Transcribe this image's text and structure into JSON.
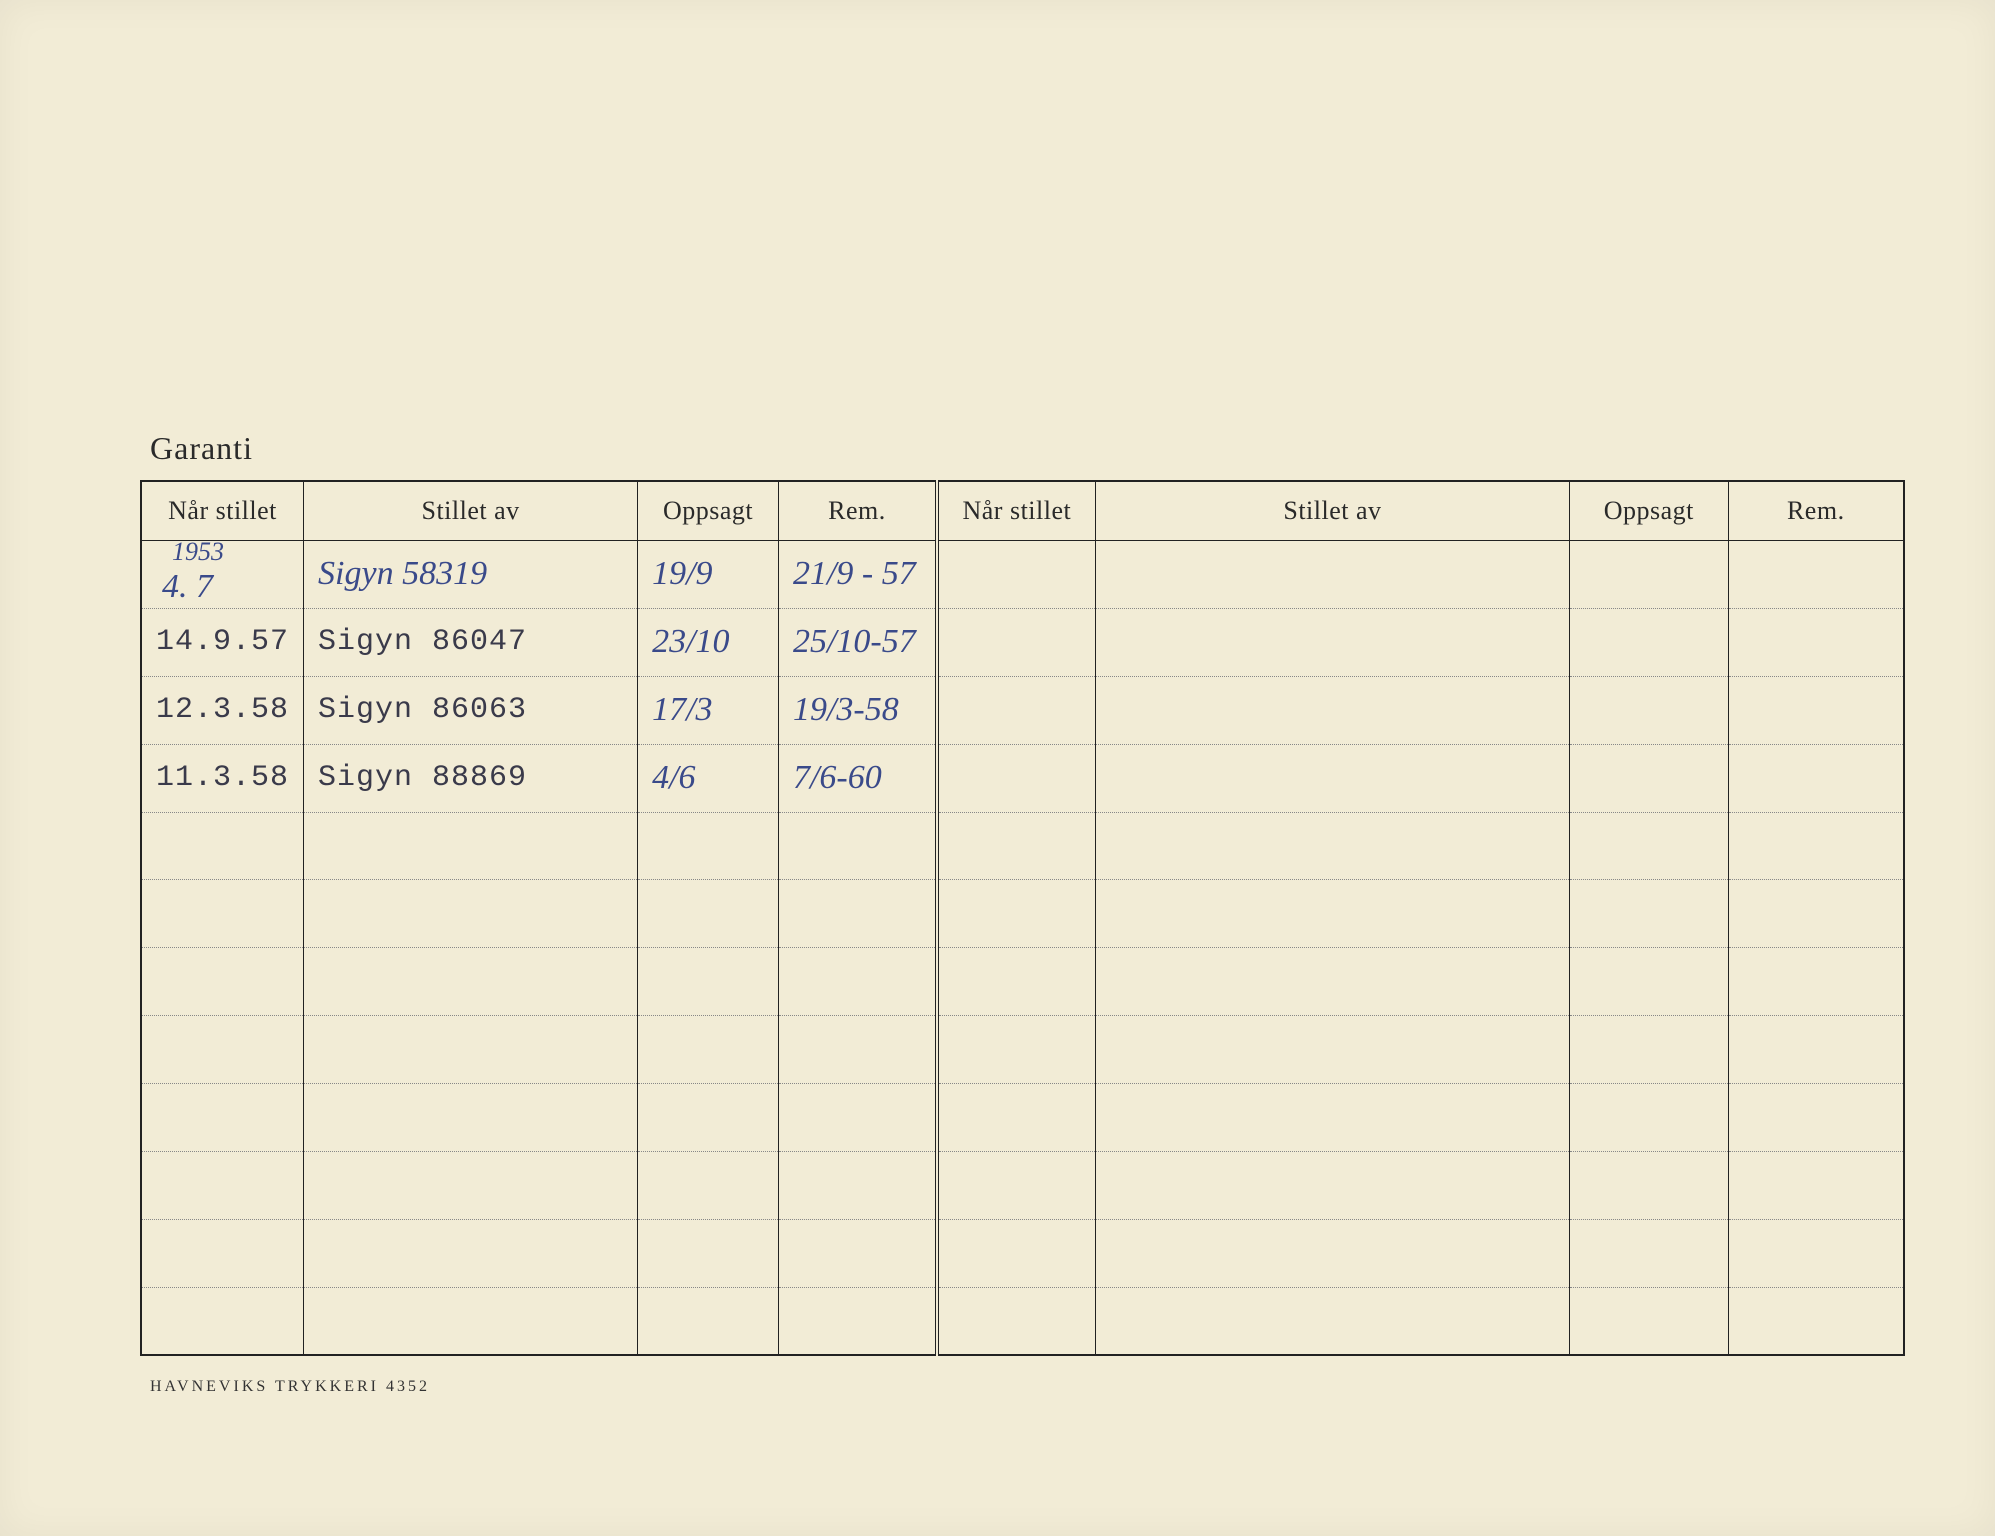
{
  "title": "Garanti",
  "footer": "HAVNEVIKS TRYKKERI 4352",
  "colors": {
    "page_bg": "#f2ecd6",
    "ink": "#2a2a2a",
    "handwritten": "#3a4a8a",
    "typed": "#3a3a4a",
    "border": "#222222",
    "dotted": "#888888"
  },
  "columns_left": {
    "nar_stillet": "Når stillet",
    "stillet_av": "Stillet av",
    "oppsagt": "Oppsagt",
    "rem": "Rem."
  },
  "columns_right": {
    "nar_stillet": "Når stillet",
    "stillet_av": "Stillet av",
    "oppsagt": "Oppsagt",
    "rem": "Rem."
  },
  "col_widths": {
    "nar_stillet": "9%",
    "stillet_av": "18%",
    "oppsagt": "8%",
    "rem": "8%",
    "nar_stillet2": "9%",
    "stillet_av2": "25%",
    "oppsagt2": "8%",
    "rem2": "8%"
  },
  "rows": [
    {
      "nar_stillet_year": "1953",
      "nar_stillet": "4. 7",
      "stillet_av": "Sigyn 58319",
      "oppsagt": "19/9",
      "rem": "21/9 - 57",
      "style_a": "handwritten",
      "style_b": "handwritten",
      "style_c": "handwritten",
      "style_d": "handwritten"
    },
    {
      "nar_stillet": "14.9.57",
      "stillet_av": "Sigyn 86047",
      "oppsagt": "23/10",
      "rem": "25/10-57",
      "style_a": "typed",
      "style_b": "typed",
      "style_c": "handwritten",
      "style_d": "handwritten"
    },
    {
      "nar_stillet": "12.3.58",
      "stillet_av": "Sigyn  86063",
      "oppsagt": "17/3",
      "rem": "19/3-58",
      "style_a": "typed",
      "style_b": "typed",
      "style_c": "handwritten",
      "style_d": "handwritten"
    },
    {
      "nar_stillet": "11.3.58",
      "stillet_av": "Sigyn 88869",
      "oppsagt": "4/6",
      "rem": "7/6-60",
      "style_a": "typed",
      "style_b": "typed",
      "style_c": "handwritten",
      "style_d": "handwritten"
    }
  ],
  "blank_rows": 8
}
